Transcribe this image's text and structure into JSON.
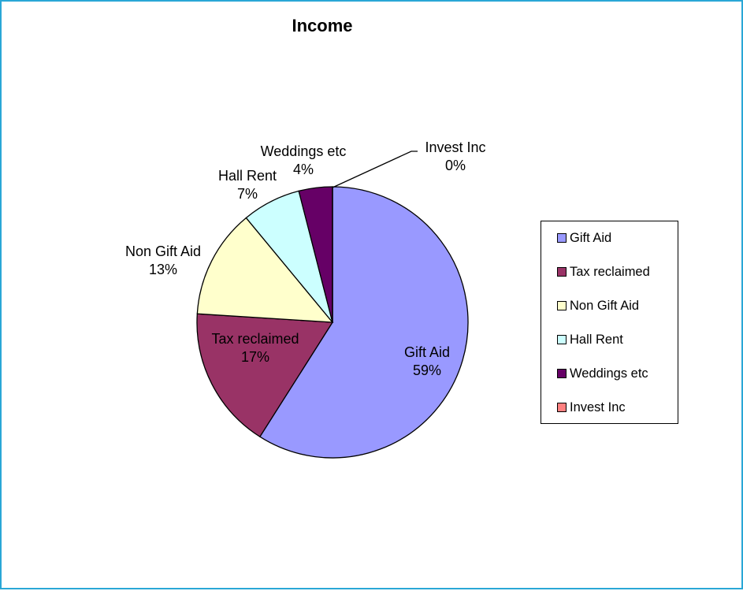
{
  "chart_data": {
    "type": "pie",
    "title": "Income",
    "slices": [
      {
        "label": "Gift Aid",
        "value": 59,
        "pct_label": "59%",
        "color": "#9999ff"
      },
      {
        "label": "Tax reclaimed",
        "value": 17,
        "pct_label": "17%",
        "color": "#993366"
      },
      {
        "label": "Non Gift Aid",
        "value": 13,
        "pct_label": "13%",
        "color": "#ffffcc"
      },
      {
        "label": "Hall Rent",
        "value": 7,
        "pct_label": "7%",
        "color": "#ccffff"
      },
      {
        "label": "Weddings etc",
        "value": 4,
        "pct_label": "4%",
        "color": "#660066"
      },
      {
        "label": "Invest Inc",
        "value": 0,
        "pct_label": "0%",
        "color": "#ff8080"
      }
    ],
    "legend_position": "right",
    "start_angle": "top, clockwise"
  },
  "frame_color": "#2aa7d6"
}
